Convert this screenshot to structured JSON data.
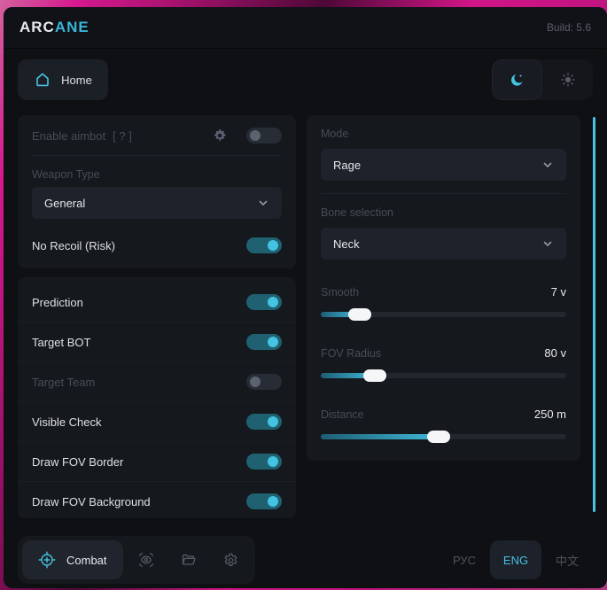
{
  "colors": {
    "accent": "#45c1e0",
    "desktop_background": "#cf1b8b",
    "window_background": "#0e1014",
    "card_background": "#15181d",
    "toggle_on_track": "#1f6170",
    "toggle_on_knob": "#44c3e2",
    "toggle_off_track": "#272c35",
    "slider_fill_end": "#41b8d9"
  },
  "header": {
    "brand_1": "ARC",
    "brand_2": "ANE",
    "build": "Build: 5.6"
  },
  "nav": {
    "home_label": "Home",
    "theme": {
      "active": "dark",
      "icons": [
        "moon-icon",
        "sun-icon"
      ]
    }
  },
  "aimbot_card": {
    "enable_label": "Enable aimbot",
    "help_label": "[ ? ]",
    "enable_on": false,
    "gear_icon": "gear-icon",
    "weapon_type_label": "Weapon Type",
    "weapon_type_value": "General",
    "no_recoil_label": "No Recoil (Risk)",
    "no_recoil_on": true
  },
  "toggle_card": {
    "rows": [
      {
        "label": "Prediction",
        "on": true,
        "dim": false
      },
      {
        "label": "Target BOT",
        "on": true,
        "dim": false
      },
      {
        "label": "Target Team",
        "on": false,
        "dim": true
      },
      {
        "label": "Visible Check",
        "on": true,
        "dim": false
      },
      {
        "label": "Draw FOV Border",
        "on": true,
        "dim": false
      },
      {
        "label": "Draw FOV Background",
        "on": true,
        "dim": false
      }
    ]
  },
  "mode_card": {
    "mode_label": "Mode",
    "mode_value": "Rage",
    "bone_label": "Bone selection",
    "bone_value": "Neck",
    "sliders": [
      {
        "label": "Smooth",
        "value": "7 v",
        "percent": 16
      },
      {
        "label": "FOV Radius",
        "value": "80 v",
        "percent": 22
      },
      {
        "label": "Distance",
        "value": "250 m",
        "percent": 48
      }
    ]
  },
  "footer": {
    "combat_label": "Combat",
    "combat_icon": "crosshair-icon",
    "tool_icons": [
      "esp-eye-icon",
      "folder-icon",
      "settings-gear-icon"
    ],
    "languages": [
      {
        "label": "РУС",
        "active": false
      },
      {
        "label": "ENG",
        "active": true
      },
      {
        "label": "中文",
        "active": false
      }
    ]
  }
}
